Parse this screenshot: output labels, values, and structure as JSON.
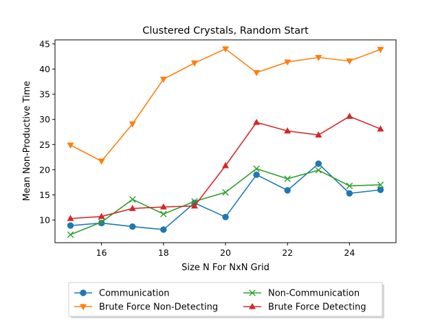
{
  "chart_data": {
    "type": "line",
    "title": "Clustered Crystals, Random Start",
    "xlabel": "Size N For NxN Grid",
    "ylabel": "Mean Non-Productive Time",
    "x": [
      15,
      16,
      17,
      18,
      19,
      20,
      21,
      22,
      23,
      24,
      25
    ],
    "xlim": [
      14.5,
      25.5
    ],
    "ylim": [
      5.5,
      45.8
    ],
    "xticks": [
      16,
      18,
      20,
      22,
      24
    ],
    "yticks": [
      10,
      15,
      20,
      25,
      30,
      35,
      40,
      45
    ],
    "grid": false,
    "legend_placement": "below plot, two columns",
    "series": [
      {
        "name": "Communication",
        "color": "#1f77b4",
        "marker": "circle",
        "values": [
          8.9,
          9.4,
          8.7,
          8.1,
          13.4,
          10.6,
          19.0,
          15.9,
          21.2,
          15.3,
          16.0
        ]
      },
      {
        "name": "Brute Force Non-Detecting",
        "color": "#ff7f0e",
        "marker": "triangle-down",
        "values": [
          24.9,
          21.7,
          29.1,
          38.0,
          41.2,
          44.0,
          39.3,
          41.4,
          42.3,
          41.6,
          43.9
        ]
      },
      {
        "name": "Non-Communication",
        "color": "#2ca02c",
        "marker": "x",
        "values": [
          7.1,
          9.6,
          14.1,
          11.2,
          13.7,
          15.5,
          20.2,
          18.2,
          19.9,
          16.8,
          17.0
        ]
      },
      {
        "name": "Brute Force Detecting",
        "color": "#d62728",
        "marker": "triangle-up",
        "values": [
          10.3,
          10.7,
          12.3,
          12.6,
          12.8,
          20.8,
          29.4,
          27.7,
          26.9,
          30.6,
          28.1
        ]
      }
    ]
  }
}
